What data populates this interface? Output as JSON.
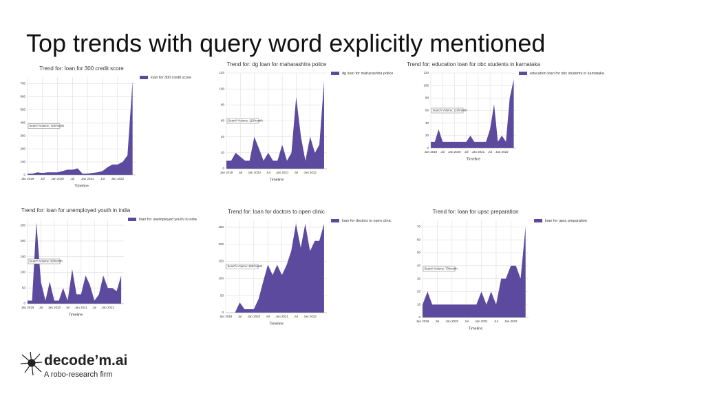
{
  "title": "Top trends with query word explicitly mentioned",
  "logo": {
    "name": "decode’m.ai",
    "tagline": "A robo-research firm"
  },
  "chart_data": [
    {
      "type": "area",
      "title": "Trend for: loan for 300 credit score",
      "x_label": "Timeline",
      "annotation": "Search Volume: 720/month",
      "grid": true,
      "x": [
        2019,
        2019.17,
        2019.33,
        2019.5,
        2019.67,
        2019.83,
        2020,
        2020.17,
        2020.33,
        2020.5,
        2020.67,
        2020.83,
        2021,
        2021.17,
        2021.33,
        2021.5,
        2021.67,
        2021.83,
        2022,
        2022.17,
        2022.33,
        2022.5
      ],
      "series": [
        {
          "name": "loan for 300 credit score",
          "color": "#5b4a9e",
          "values": [
            10,
            10,
            20,
            15,
            20,
            20,
            20,
            30,
            40,
            40,
            50,
            10,
            10,
            15,
            20,
            30,
            60,
            80,
            80,
            100,
            150,
            720
          ]
        }
      ],
      "xlim": [
        2019,
        2022.6
      ],
      "xticks": [
        {
          "value": 2019,
          "label": "Jan 2019"
        },
        {
          "value": 2019.5,
          "label": "Jul"
        },
        {
          "value": 2020,
          "label": "Jan 2020"
        },
        {
          "value": 2020.5,
          "label": "Jul"
        },
        {
          "value": 2021,
          "label": "Jan 2021"
        },
        {
          "value": 2021.5,
          "label": "Jul"
        },
        {
          "value": 2022,
          "label": "Jan 2022"
        }
      ],
      "ylim": [
        0,
        750
      ],
      "yticks": [
        0,
        100,
        200,
        300,
        400,
        500,
        600,
        700
      ]
    },
    {
      "type": "area",
      "title": "Trend for: dg loan for maharashtra police",
      "x_label": "Timeline",
      "annotation": "Search Volume: 110/month",
      "grid": true,
      "x": [
        2019,
        2019.17,
        2019.33,
        2019.5,
        2019.67,
        2019.83,
        2020,
        2020.17,
        2020.33,
        2020.5,
        2020.67,
        2020.83,
        2021,
        2021.17,
        2021.33,
        2021.5,
        2021.67,
        2021.83,
        2022,
        2022.17,
        2022.33,
        2022.5
      ],
      "series": [
        {
          "name": "dg loan for maharashtra police",
          "color": "#5b4a9e",
          "values": [
            10,
            10,
            20,
            15,
            10,
            10,
            40,
            25,
            10,
            20,
            10,
            10,
            30,
            10,
            20,
            90,
            40,
            10,
            40,
            20,
            30,
            110
          ]
        }
      ],
      "xlim": [
        2019,
        2022.6
      ],
      "xticks": [
        {
          "value": 2019,
          "label": "Jan 2019"
        },
        {
          "value": 2019.5,
          "label": "Jul"
        },
        {
          "value": 2020,
          "label": "Jan 2020"
        },
        {
          "value": 2020.5,
          "label": "Jul"
        },
        {
          "value": 2021,
          "label": "Jan 2021"
        },
        {
          "value": 2021.5,
          "label": "Jul"
        },
        {
          "value": 2022,
          "label": "Jan 2022"
        }
      ],
      "ylim": [
        0,
        120
      ],
      "yticks": [
        0,
        20,
        40,
        60,
        80,
        100,
        120
      ]
    },
    {
      "type": "area",
      "title": "Trend for: education loan for obc students in karnataka",
      "x_label": "Timeline",
      "annotation": "Search Volume: 110/month",
      "grid": true,
      "x": [
        2019,
        2019.17,
        2019.33,
        2019.5,
        2019.67,
        2019.83,
        2020,
        2020.17,
        2020.33,
        2020.5,
        2020.67,
        2020.83,
        2021,
        2021.17,
        2021.33,
        2021.5,
        2021.67,
        2021.83,
        2022,
        2022.17,
        2022.33,
        2022.5
      ],
      "series": [
        {
          "name": "education loan for obc students in karnataka",
          "color": "#5b4a9e",
          "values": [
            10,
            10,
            30,
            10,
            10,
            10,
            10,
            10,
            10,
            10,
            20,
            10,
            10,
            10,
            10,
            30,
            70,
            10,
            20,
            10,
            80,
            110
          ]
        }
      ],
      "xlim": [
        2019,
        2022.6
      ],
      "xticks": [
        {
          "value": 2019,
          "label": "Jan 2019"
        },
        {
          "value": 2019.5,
          "label": "Jul"
        },
        {
          "value": 2020,
          "label": "Jan 2020"
        },
        {
          "value": 2020.5,
          "label": "Jul"
        },
        {
          "value": 2021,
          "label": "Jan 2021"
        },
        {
          "value": 2021.5,
          "label": "Jul"
        },
        {
          "value": 2022,
          "label": "Jan 2022"
        }
      ],
      "ylim": [
        0,
        120
      ],
      "yticks": [
        0,
        20,
        40,
        60,
        80,
        100,
        120
      ]
    },
    {
      "type": "area",
      "title": "Trend for: loan for unemployed youth in india",
      "x_label": "Timeline",
      "annotation": "Search Volume: 90/month",
      "grid": true,
      "x": [
        2019,
        2019.17,
        2019.33,
        2019.5,
        2019.67,
        2019.83,
        2020,
        2020.17,
        2020.33,
        2020.5,
        2020.67,
        2020.83,
        2021,
        2021.17,
        2021.33,
        2021.5,
        2021.67,
        2021.83,
        2022,
        2022.17,
        2022.33,
        2022.5
      ],
      "series": [
        {
          "name": "loan for unemployed youth in india",
          "color": "#5b4a9e",
          "values": [
            10,
            10,
            260,
            70,
            10,
            70,
            10,
            10,
            50,
            10,
            110,
            30,
            30,
            90,
            60,
            10,
            30,
            90,
            50,
            50,
            40,
            90
          ]
        }
      ],
      "xlim": [
        2019,
        2022.6
      ],
      "xticks": [
        {
          "value": 2019,
          "label": "Jan 2019"
        },
        {
          "value": 2019.5,
          "label": "Jul"
        },
        {
          "value": 2020,
          "label": "Jan 2020"
        },
        {
          "value": 2020.5,
          "label": "Jul"
        },
        {
          "value": 2021,
          "label": "Jan 2021"
        },
        {
          "value": 2021.5,
          "label": "Jul"
        },
        {
          "value": 2022,
          "label": "Jan 2022"
        }
      ],
      "ylim": [
        0,
        270
      ],
      "yticks": [
        0,
        50,
        100,
        150,
        200,
        250
      ]
    },
    {
      "type": "area",
      "title": "Trend for: loan for doctors to open clinic",
      "x_label": "Timeline",
      "annotation": "Search Volume: 260/month",
      "grid": true,
      "x": [
        2019,
        2019.17,
        2019.33,
        2019.5,
        2019.67,
        2019.83,
        2020,
        2020.17,
        2020.33,
        2020.5,
        2020.67,
        2020.83,
        2021,
        2021.17,
        2021.33,
        2021.5,
        2021.67,
        2021.83,
        2022,
        2022.17,
        2022.33,
        2022.5
      ],
      "series": [
        {
          "name": "loan for doctors to open clinic",
          "color": "#5b4a9e",
          "values": [
            0,
            0,
            0,
            30,
            10,
            10,
            10,
            40,
            90,
            140,
            110,
            140,
            110,
            140,
            180,
            260,
            190,
            260,
            180,
            210,
            210,
            260
          ]
        }
      ],
      "xlim": [
        2019,
        2022.6
      ],
      "xticks": [
        {
          "value": 2019,
          "label": "Jan 2019"
        },
        {
          "value": 2019.5,
          "label": "Jul"
        },
        {
          "value": 2020,
          "label": "Jan 2020"
        },
        {
          "value": 2020.5,
          "label": "Jul"
        },
        {
          "value": 2021,
          "label": "Jan 2021"
        },
        {
          "value": 2021.5,
          "label": "Jul"
        },
        {
          "value": 2022,
          "label": "Jan 2022"
        }
      ],
      "ylim": [
        0,
        270
      ],
      "yticks": [
        0,
        50,
        100,
        150,
        200,
        250
      ]
    },
    {
      "type": "area",
      "title": "Trend for: loan for upsc preparation",
      "x_label": "Timeline",
      "annotation": "Search Volume: 70/month",
      "grid": true,
      "x": [
        2019,
        2019.17,
        2019.33,
        2019.5,
        2019.67,
        2019.83,
        2020,
        2020.17,
        2020.33,
        2020.5,
        2020.67,
        2020.83,
        2021,
        2021.17,
        2021.33,
        2021.5,
        2021.67,
        2021.83,
        2022,
        2022.17,
        2022.33,
        2022.5
      ],
      "series": [
        {
          "name": "loan for upsc preparation",
          "color": "#5b4a9e",
          "values": [
            10,
            20,
            10,
            10,
            10,
            10,
            10,
            10,
            10,
            10,
            10,
            10,
            20,
            10,
            20,
            10,
            30,
            30,
            40,
            40,
            30,
            70
          ]
        }
      ],
      "xlim": [
        2019,
        2022.6
      ],
      "xticks": [
        {
          "value": 2019,
          "label": "Jan 2019"
        },
        {
          "value": 2019.5,
          "label": "Jul"
        },
        {
          "value": 2020,
          "label": "Jan 2020"
        },
        {
          "value": 2020.5,
          "label": "Jul"
        },
        {
          "value": 2021,
          "label": "Jan 2021"
        },
        {
          "value": 2021.5,
          "label": "Jul"
        },
        {
          "value": 2022,
          "label": "Jan 2022"
        }
      ],
      "ylim": [
        0,
        75
      ],
      "yticks": [
        0,
        10,
        20,
        30,
        40,
        50,
        60,
        70
      ]
    }
  ]
}
